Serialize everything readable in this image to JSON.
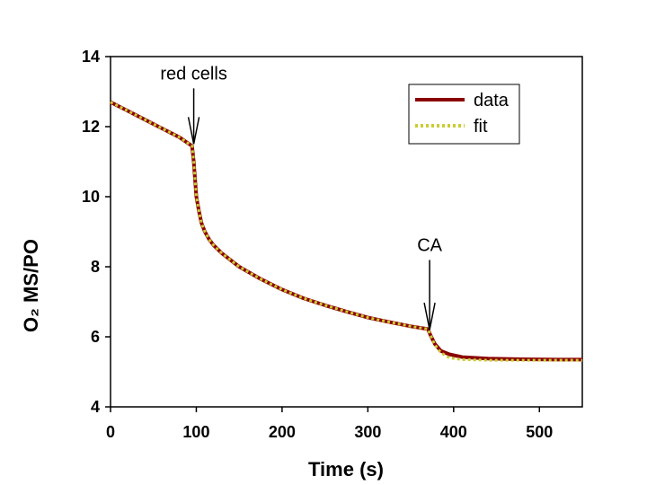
{
  "chart_data": {
    "type": "line",
    "title": "",
    "xlabel": "Time (s)",
    "ylabel": "O₂ MS/PO",
    "xlim": [
      0,
      550
    ],
    "ylim": [
      4,
      14
    ],
    "x_ticks": [
      0,
      100,
      200,
      300,
      400,
      500
    ],
    "y_ticks": [
      4,
      6,
      8,
      10,
      12,
      14
    ],
    "x_tick_labels": [
      "0",
      "100",
      "200",
      "300",
      "400",
      "500"
    ],
    "y_tick_labels": [
      "4",
      "6",
      "8",
      "10",
      "12",
      "14"
    ],
    "grid": false,
    "legend_position": "top-right",
    "series": [
      {
        "name": "data",
        "color": "#8b0000",
        "style": "solid",
        "x": [
          0,
          20,
          40,
          60,
          80,
          95,
          97,
          100,
          103,
          106,
          110,
          115,
          120,
          130,
          150,
          175,
          200,
          225,
          250,
          275,
          300,
          325,
          350,
          370,
          373,
          378,
          385,
          395,
          410,
          440,
          480,
          520,
          550
        ],
        "y": [
          12.7,
          12.45,
          12.2,
          11.95,
          11.7,
          11.45,
          11.0,
          10.0,
          9.6,
          9.25,
          9.0,
          8.78,
          8.62,
          8.38,
          8.0,
          7.65,
          7.35,
          7.1,
          6.9,
          6.72,
          6.55,
          6.42,
          6.3,
          6.22,
          6.05,
          5.8,
          5.6,
          5.5,
          5.42,
          5.38,
          5.36,
          5.35,
          5.35
        ]
      },
      {
        "name": "fit",
        "color": "#cccc33",
        "style": "dotted",
        "x": [
          0,
          20,
          40,
          60,
          80,
          95,
          97,
          100,
          103,
          106,
          110,
          115,
          120,
          130,
          150,
          175,
          200,
          225,
          250,
          275,
          300,
          325,
          350,
          370,
          373,
          378,
          385,
          395,
          410,
          440,
          480,
          520,
          550
        ],
        "y": [
          12.7,
          12.45,
          12.2,
          11.95,
          11.7,
          11.45,
          11.0,
          10.0,
          9.6,
          9.25,
          9.0,
          8.78,
          8.62,
          8.38,
          8.0,
          7.65,
          7.35,
          7.1,
          6.9,
          6.72,
          6.55,
          6.42,
          6.3,
          6.22,
          6.05,
          5.78,
          5.55,
          5.4,
          5.35,
          5.33,
          5.33,
          5.33,
          5.33
        ]
      }
    ],
    "annotations": [
      {
        "text": "red cells",
        "x": 97,
        "y": 11.4,
        "text_y": 13.35
      },
      {
        "text": "CA",
        "x": 372,
        "y": 6.1,
        "text_y": 8.45
      }
    ]
  }
}
